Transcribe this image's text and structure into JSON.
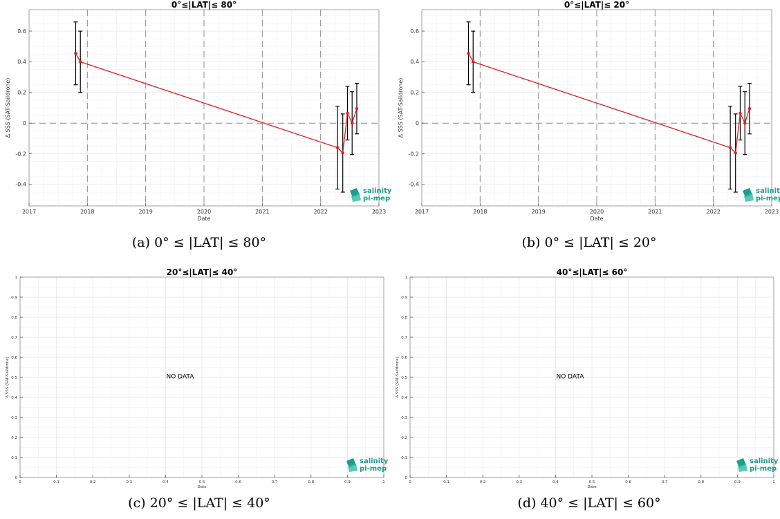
{
  "colors": {
    "series": "#e31a1c",
    "errorbar": "#000000",
    "logo": "#1a9e8e",
    "grid": "#e6e6e6",
    "dash": "#8c8c8c"
  },
  "logo": {
    "line1": "salinity",
    "line2": "pi-mep"
  },
  "chart_data": [
    {
      "type": "line",
      "title": "0°≤|LAT|≤ 80°",
      "xlabel": "Date",
      "ylabel": "Δ SSS (SAT-Saildrone)",
      "caption": "(a) 0° ≤ |LAT| ≤ 80°",
      "xlim": [
        2017,
        2023
      ],
      "ylim": [
        -0.54,
        0.74
      ],
      "xticks": [
        2017,
        2018,
        2019,
        2020,
        2021,
        2022,
        2023
      ],
      "yticks": [
        -0.4,
        -0.2,
        0,
        0.2,
        0.4,
        0.6
      ],
      "ytick_labels": [
        "-0.4",
        "-0.2",
        "0",
        "0.2",
        "0.4",
        "0.6"
      ],
      "vlines": [
        2018,
        2019,
        2020,
        2021,
        2022
      ],
      "hline": 0,
      "grid": true,
      "series": [
        {
          "x": [
            2017.8,
            2017.88,
            2022.29,
            2022.38,
            2022.46,
            2022.54,
            2022.62
          ],
          "y": [
            0.455,
            0.4,
            -0.16,
            -0.195,
            0.065,
            0.0,
            0.095
          ],
          "err": [
            0.205,
            0.2,
            0.27,
            0.255,
            0.175,
            0.205,
            0.165
          ]
        }
      ]
    },
    {
      "type": "line",
      "title": "0°≤|LAT|≤ 20°",
      "xlabel": "Date",
      "ylabel": "Δ SSS (SAT-Saildrone)",
      "caption": "(b) 0° ≤ |LAT| ≤ 20°",
      "xlim": [
        2017,
        2023
      ],
      "ylim": [
        -0.54,
        0.74
      ],
      "xticks": [
        2017,
        2018,
        2019,
        2020,
        2021,
        2022,
        2023
      ],
      "yticks": [
        -0.4,
        -0.2,
        0,
        0.2,
        0.4,
        0.6
      ],
      "ytick_labels": [
        "-0.4",
        "-0.2",
        "0",
        "0.2",
        "0.4",
        "0.6"
      ],
      "vlines": [
        2018,
        2019,
        2020,
        2021,
        2022
      ],
      "hline": 0,
      "grid": true,
      "series": [
        {
          "x": [
            2017.8,
            2017.88,
            2022.29,
            2022.38,
            2022.46,
            2022.54,
            2022.62
          ],
          "y": [
            0.455,
            0.4,
            -0.16,
            -0.195,
            0.065,
            0.0,
            0.095
          ],
          "err": [
            0.205,
            0.2,
            0.27,
            0.255,
            0.175,
            0.205,
            0.165
          ]
        }
      ]
    },
    {
      "type": "line",
      "title": "20°≤|LAT|≤ 40°",
      "xlabel": "Date",
      "ylabel": "Δ SSS (SAT-Saildrone)",
      "caption": "(c) 20° ≤ |LAT| ≤ 40°",
      "annotation": "NO DATA",
      "xlim": [
        0,
        1
      ],
      "ylim": [
        0,
        1
      ],
      "xticks": [
        0,
        0.1,
        0.2,
        0.3,
        0.4,
        0.5,
        0.6,
        0.7,
        0.8,
        0.9,
        1
      ],
      "yticks": [
        0,
        0.1,
        0.2,
        0.3,
        0.4,
        0.5,
        0.6,
        0.7,
        0.8,
        0.9,
        1
      ],
      "grid": true,
      "series": []
    },
    {
      "type": "line",
      "title": "40°≤|LAT|≤ 60°",
      "xlabel": "Date",
      "ylabel": "Δ SSS (SAT-Saildrone)",
      "caption": "(d) 40° ≤ |LAT| ≤ 60°",
      "annotation": "NO DATA",
      "xlim": [
        0,
        1
      ],
      "ylim": [
        0,
        1
      ],
      "xticks": [
        0,
        0.1,
        0.2,
        0.3,
        0.4,
        0.5,
        0.6,
        0.7,
        0.8,
        0.9,
        1
      ],
      "yticks": [
        0,
        0.1,
        0.2,
        0.3,
        0.4,
        0.5,
        0.6,
        0.7,
        0.8,
        0.9,
        1
      ],
      "grid": true,
      "series": []
    }
  ]
}
